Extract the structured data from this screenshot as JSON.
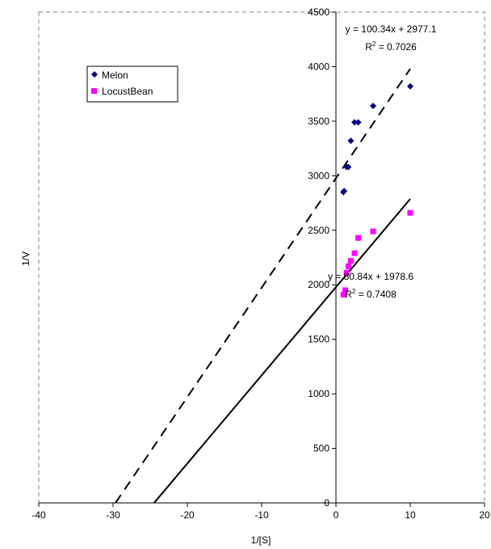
{
  "chart_data": {
    "type": "scatter",
    "xlabel": "1/[S]",
    "ylabel": "1/V",
    "xlim": [
      -40,
      20
    ],
    "ylim": [
      0,
      4500
    ],
    "xticks": [
      "-40",
      "-30",
      "-20",
      "-10",
      "0",
      "10",
      "20"
    ],
    "yticks": [
      "0",
      "500",
      "1000",
      "1500",
      "2000",
      "2500",
      "3000",
      "3500",
      "4000",
      "4500"
    ],
    "grid": false,
    "legend_position": "top-left",
    "series": [
      {
        "name": "Melon",
        "marker": "diamond",
        "color": "#00007f",
        "points": [
          [
            1,
            2850
          ],
          [
            1.1,
            2860
          ],
          [
            1.43,
            3080
          ],
          [
            1.67,
            3080
          ],
          [
            2,
            3320
          ],
          [
            2.5,
            3490
          ],
          [
            3.0,
            3490
          ],
          [
            5,
            3640
          ],
          [
            10,
            3820
          ]
        ]
      },
      {
        "name": "LocustBean",
        "marker": "square",
        "color": "#ff00ff",
        "points": [
          [
            1,
            1910
          ],
          [
            1.25,
            1950
          ],
          [
            1.43,
            2110
          ],
          [
            1.67,
            2170
          ],
          [
            2,
            2220
          ],
          [
            2.5,
            2290
          ],
          [
            3.0,
            2430
          ],
          [
            5,
            2490
          ],
          [
            10,
            2660
          ]
        ]
      }
    ],
    "trendlines": [
      {
        "series": "Melon",
        "slope": 100.34,
        "intercept": 2977.1,
        "x_range": [
          -29.67,
          10
        ],
        "style": "dashed",
        "equation": "y = 100.34x + 2977.1",
        "r2_prefix": "R",
        "r2_sup": "2",
        "r2_value": " = 0.7026"
      },
      {
        "series": "LocustBean",
        "slope": 80.84,
        "intercept": 1978.6,
        "x_range": [
          -24.48,
          10
        ],
        "style": "solid",
        "equation": "y = 80.84x + 1978.6",
        "r2_prefix": "R",
        "r2_sup": "2",
        "r2_value": " = 0.7408"
      }
    ]
  }
}
